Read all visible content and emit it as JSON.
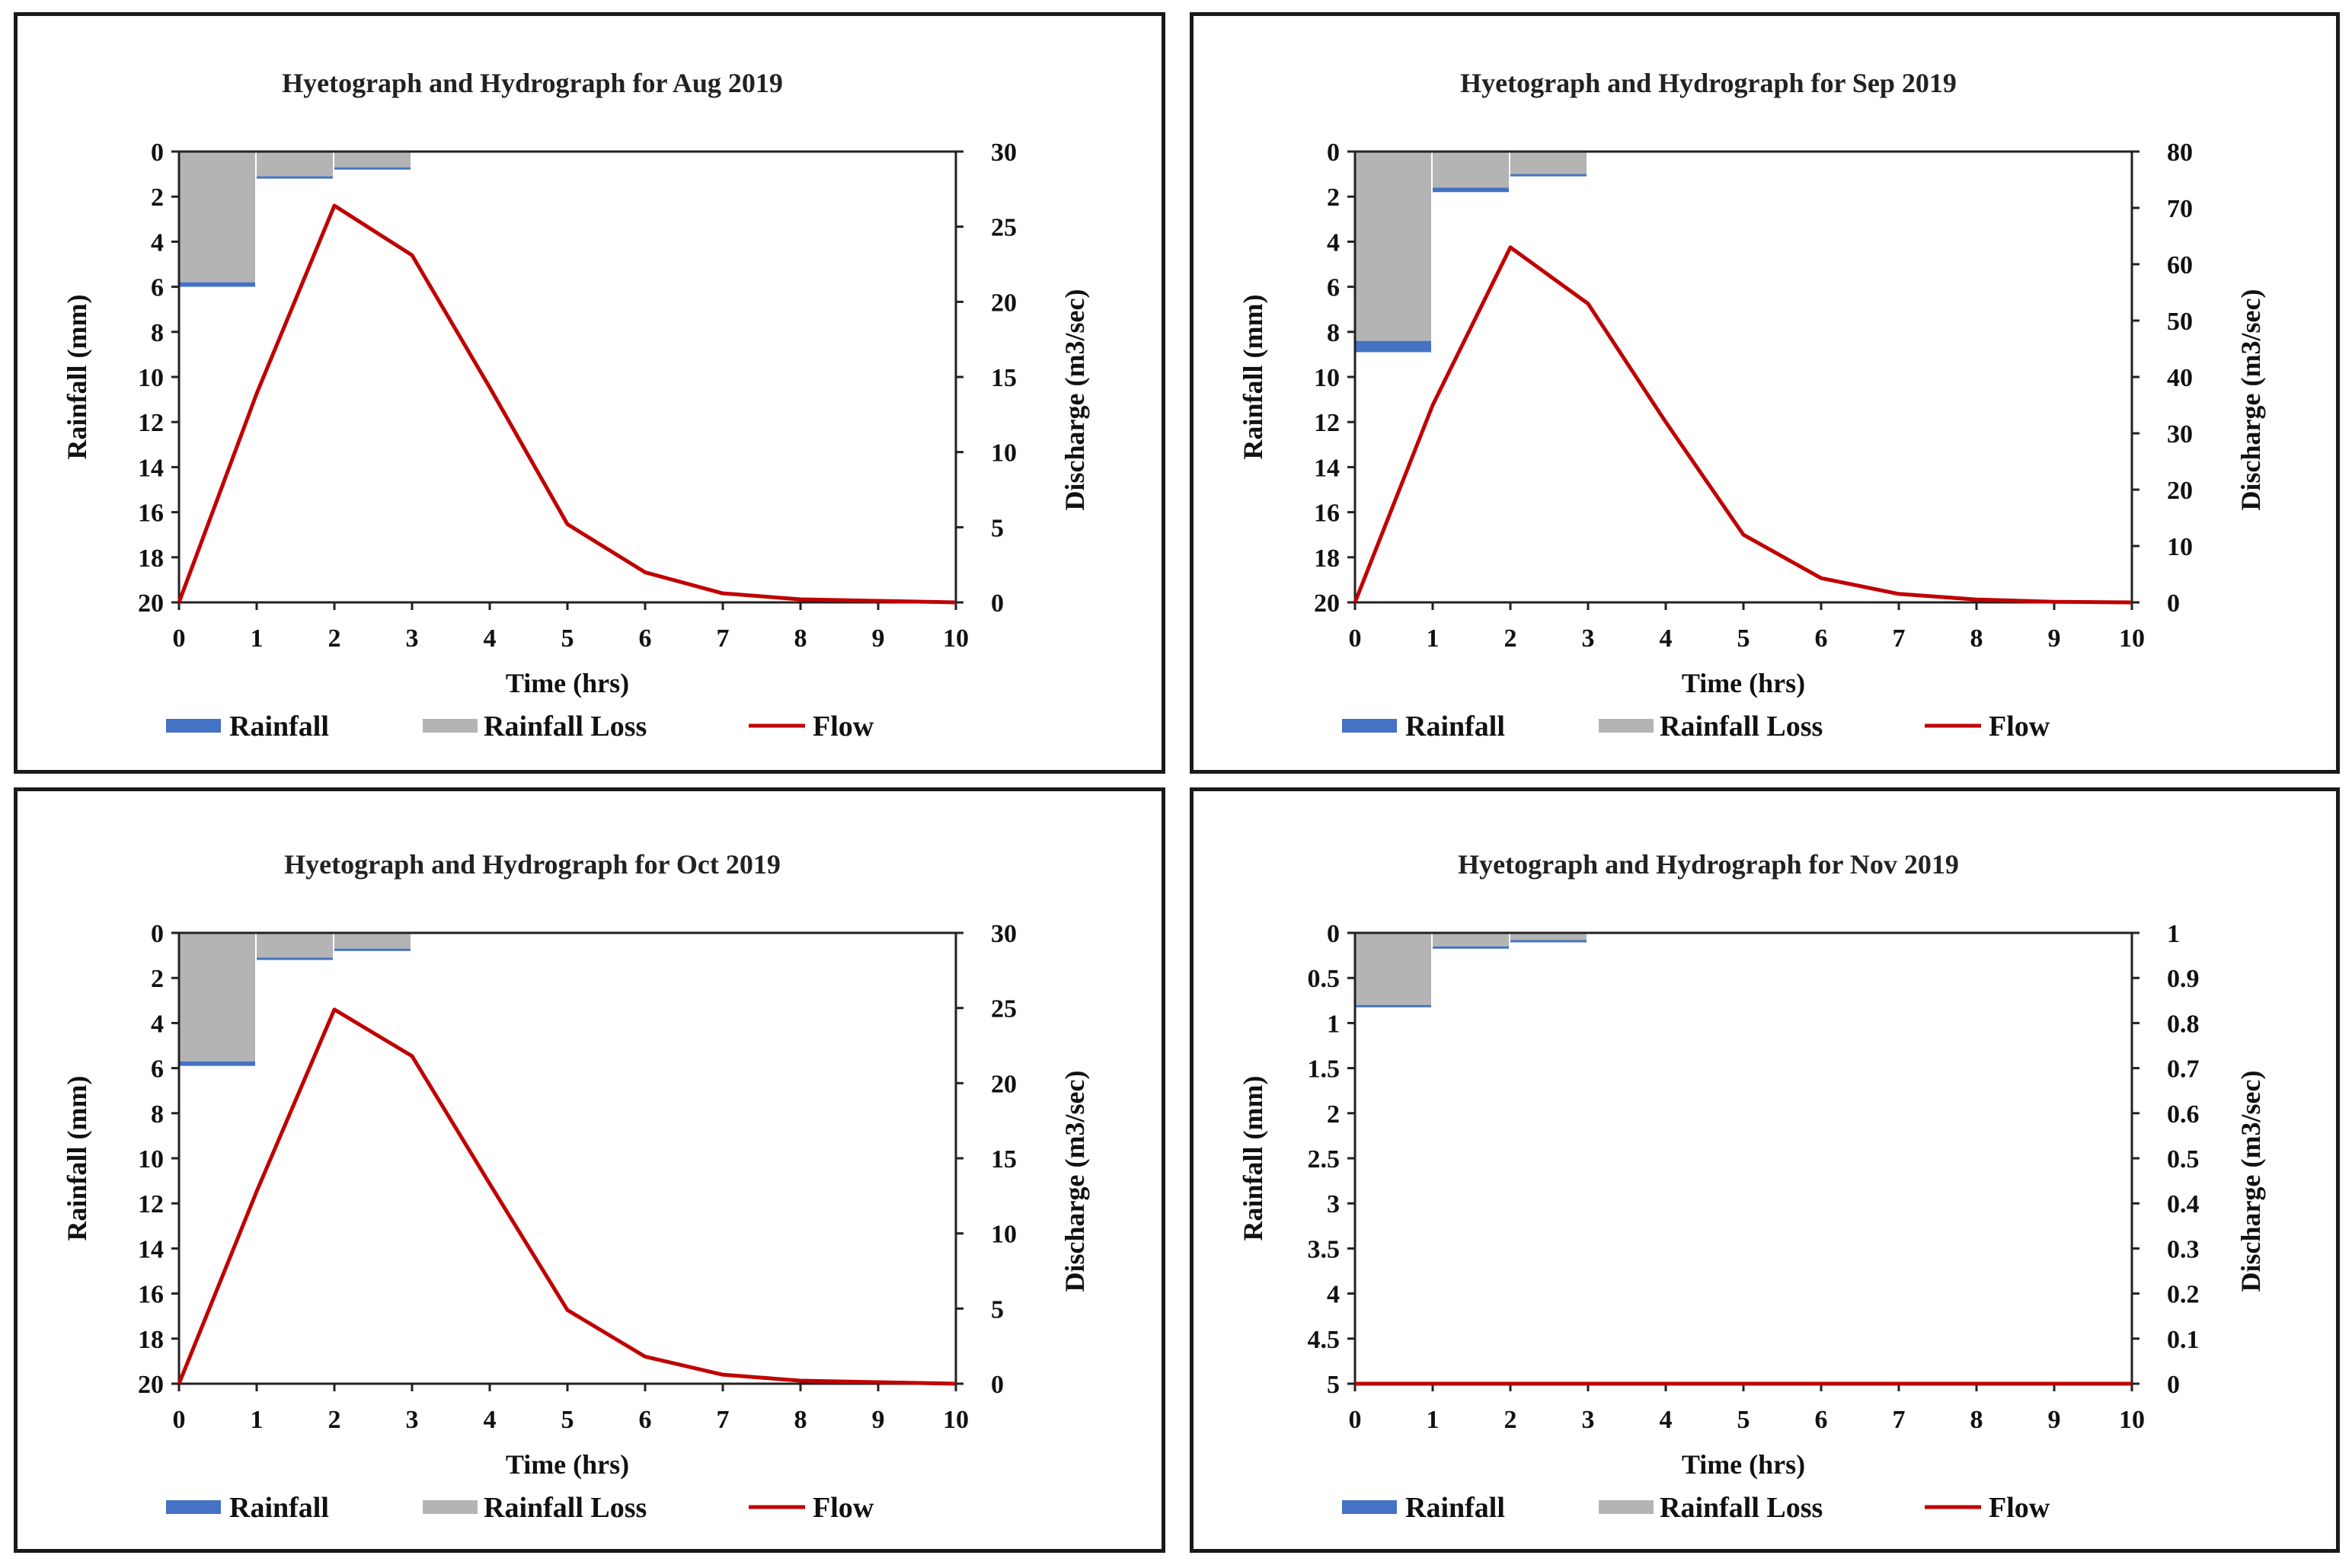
{
  "colors": {
    "rainfall": "#4472c4",
    "rainfall_loss": "#b4b4b4",
    "flow": "#c00000",
    "frame": "#1a1a1a"
  },
  "chart_data": [
    {
      "type": "area",
      "title": "Hyetograph and Hydrograph for Aug 2019",
      "xlabel": "Time (hrs)",
      "ylabel": "Rainfall (mm)",
      "y2label": "Discharge (m3/sec)",
      "xlim": [
        0,
        10
      ],
      "xticks": [
        "0",
        "1",
        "2",
        "3",
        "4",
        "5",
        "6",
        "7",
        "8",
        "9",
        "10"
      ],
      "ylim": [
        0,
        20
      ],
      "yticks": [
        "0",
        "2",
        "4",
        "6",
        "8",
        "10",
        "12",
        "14",
        "16",
        "18",
        "20"
      ],
      "y2lim": [
        0,
        30
      ],
      "y2ticks": [
        "0",
        "5",
        "10",
        "15",
        "20",
        "25",
        "30"
      ],
      "rainfall_loss": [
        5.8,
        1.1,
        0.7
      ],
      "rainfall_excess": [
        0.2,
        0.1,
        0.1
      ],
      "flow": [
        0,
        13.9,
        26.4,
        23.1,
        14.3,
        5.2,
        2.0,
        0.6,
        0.2,
        0.1,
        0.0
      ],
      "legend": [
        "Rainfall",
        "Rainfall Loss",
        "Flow"
      ]
    },
    {
      "type": "area",
      "title": "Hyetograph and Hydrograph for Sep 2019",
      "xlabel": "Time (hrs)",
      "ylabel": "Rainfall (mm)",
      "y2label": "Discharge (m3/sec)",
      "xlim": [
        0,
        10
      ],
      "xticks": [
        "0",
        "1",
        "2",
        "3",
        "4",
        "5",
        "6",
        "7",
        "8",
        "9",
        "10"
      ],
      "ylim": [
        0,
        20
      ],
      "yticks": [
        "0",
        "2",
        "4",
        "6",
        "8",
        "10",
        "12",
        "14",
        "16",
        "18",
        "20"
      ],
      "y2lim": [
        0,
        80
      ],
      "y2ticks": [
        "0",
        "10",
        "20",
        "30",
        "40",
        "50",
        "60",
        "70",
        "80"
      ],
      "rainfall_loss": [
        8.4,
        1.6,
        1.0
      ],
      "rainfall_excess": [
        0.5,
        0.2,
        0.1
      ],
      "flow": [
        0,
        35.0,
        63.0,
        53.0,
        32.0,
        12.0,
        4.3,
        1.5,
        0.5,
        0.1,
        0.0
      ],
      "legend": [
        "Rainfall",
        "Rainfall Loss",
        "Flow"
      ]
    },
    {
      "type": "area",
      "title": "Hyetograph and Hydrograph for Oct 2019",
      "xlabel": "Time (hrs)",
      "ylabel": "Rainfall (mm)",
      "y2label": "Discharge (m3/sec)",
      "xlim": [
        0,
        10
      ],
      "xticks": [
        "0",
        "1",
        "2",
        "3",
        "4",
        "5",
        "6",
        "7",
        "8",
        "9",
        "10"
      ],
      "ylim": [
        0,
        20
      ],
      "yticks": [
        "0",
        "2",
        "4",
        "6",
        "8",
        "10",
        "12",
        "14",
        "16",
        "18",
        "20"
      ],
      "y2lim": [
        0,
        30
      ],
      "y2ticks": [
        "0",
        "5",
        "10",
        "15",
        "20",
        "25",
        "30"
      ],
      "rainfall_loss": [
        5.7,
        1.1,
        0.7
      ],
      "rainfall_excess": [
        0.2,
        0.1,
        0.1
      ],
      "flow": [
        0,
        12.8,
        24.9,
        21.8,
        13.3,
        4.9,
        1.8,
        0.6,
        0.2,
        0.1,
        0.0
      ],
      "legend": [
        "Rainfall",
        "Rainfall Loss",
        "Flow"
      ]
    },
    {
      "type": "area",
      "title": "Hyetograph and Hydrograph for Nov 2019",
      "xlabel": "Time (hrs)",
      "ylabel": "Rainfall (mm)",
      "y2label": "Discharge (m3/sec)",
      "xlim": [
        0,
        10
      ],
      "xticks": [
        "0",
        "1",
        "2",
        "3",
        "4",
        "5",
        "6",
        "7",
        "8",
        "9",
        "10"
      ],
      "ylim": [
        0,
        5
      ],
      "yticks": [
        "0",
        "0.5",
        "1",
        "1.5",
        "2",
        "2.5",
        "3",
        "3.5",
        "4",
        "4.5",
        "5"
      ],
      "y2lim": [
        0,
        1
      ],
      "y2ticks": [
        "0",
        "0.1",
        "0.2",
        "0.3",
        "0.4",
        "0.5",
        "0.6",
        "0.7",
        "0.8",
        "0.9",
        "1"
      ],
      "rainfall_loss": [
        0.8,
        0.15,
        0.08
      ],
      "rainfall_excess": [
        0.0,
        0.0,
        0.0
      ],
      "flow": [
        0,
        0,
        0,
        0,
        0,
        0,
        0,
        0,
        0,
        0,
        0
      ],
      "legend": [
        "Rainfall",
        "Rainfall Loss",
        "Flow"
      ]
    }
  ]
}
